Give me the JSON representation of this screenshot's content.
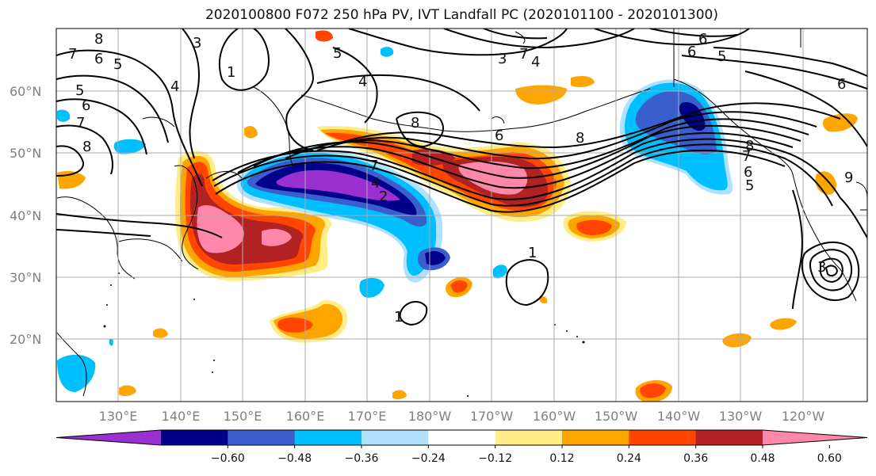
{
  "title": "2020100800 F072 250 hPa PV, IVT Landfall PC (2020101100 - 2020101300)",
  "latitude_labels": [
    "20°N",
    "30°N",
    "40°N",
    "50°N",
    "60°N"
  ],
  "longitude_labels": [
    "130°E",
    "140°E",
    "150°E",
    "160°E",
    "170°E",
    "180°W",
    "170°W",
    "160°W",
    "150°W",
    "140°W",
    "130°W",
    "120°W"
  ],
  "colorbar": {
    "colors": [
      "#9b30d0",
      "#00008b",
      "#3a5fcd",
      "#00bfff",
      "#b0e2ff",
      "#ffffff",
      "#ffee88",
      "#ffa500",
      "#ff4500",
      "#b22222",
      "#ff88aa"
    ],
    "tick_labels": [
      "−0.60",
      "−0.48",
      "−0.36",
      "−0.24",
      "−0.12",
      "0.12",
      "0.24",
      "0.36",
      "0.48",
      "0.60"
    ]
  },
  "contour_labels": [
    "8",
    "7",
    "6",
    "5",
    "5",
    "6",
    "7",
    "8",
    "3",
    "1",
    "4",
    "5",
    "4",
    "8",
    "6",
    "8",
    "7",
    "4",
    "2",
    "3",
    "7",
    "4",
    "6",
    "5",
    "6",
    "5",
    "6",
    "7",
    "8",
    "9",
    "1",
    "1",
    "3",
    "6"
  ]
}
